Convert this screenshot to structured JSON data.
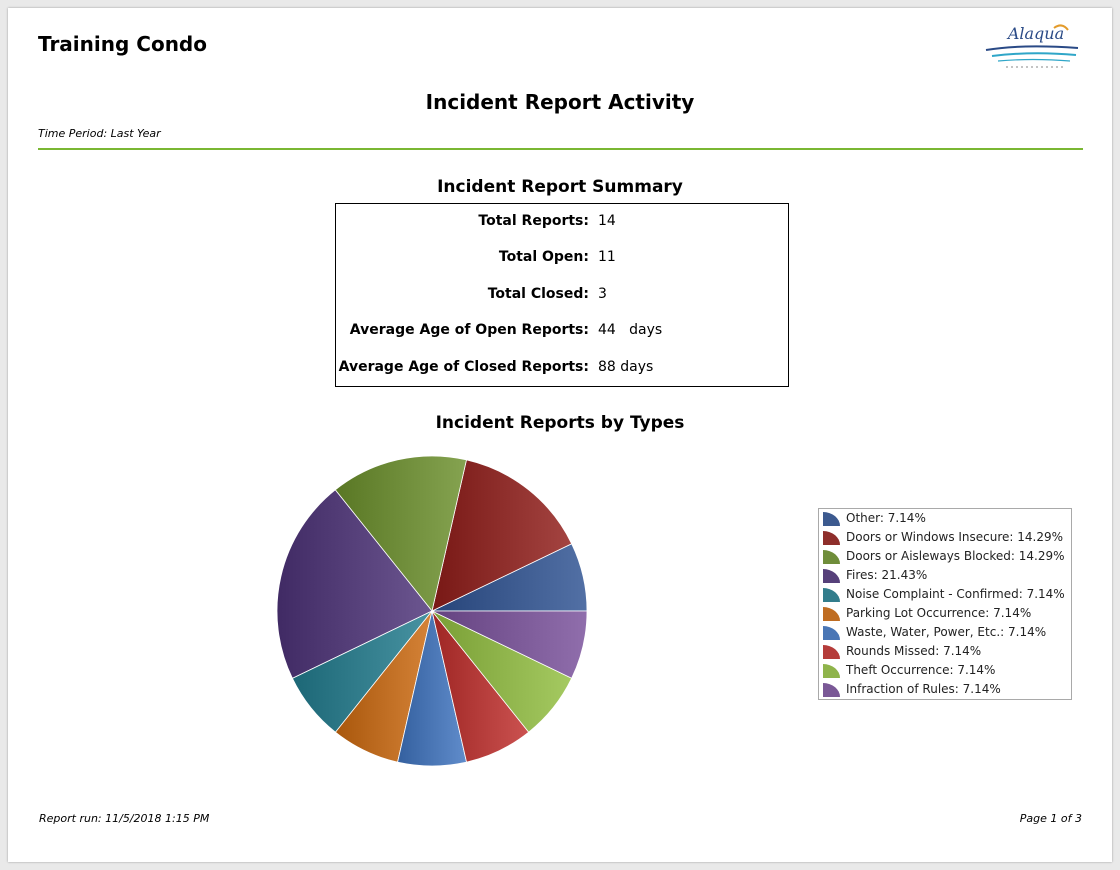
{
  "header": {
    "org_name": "Training Condo",
    "logo_text": "Alaqua"
  },
  "report": {
    "title": "Incident Report Activity",
    "time_period": "Time Period: Last Year"
  },
  "summary": {
    "title": "Incident Report Summary",
    "rows": [
      {
        "label": "Total Reports:",
        "value": "14"
      },
      {
        "label": "Total Open:",
        "value": "11"
      },
      {
        "label": "Total Closed:",
        "value": "3"
      },
      {
        "label": "Average Age of Open Reports:",
        "value": "44   days"
      },
      {
        "label": "Average Age of Closed Reports:",
        "value": "88 days"
      }
    ]
  },
  "chart_data": {
    "type": "pie",
    "title": "Incident Reports by Types",
    "legend_position": "right",
    "slices": [
      {
        "label": "Other",
        "value": 7.14,
        "legend": "Other: 7.14%",
        "color": "#3c5a8f"
      },
      {
        "label": "Doors or Windows Insecure",
        "value": 14.29,
        "legend": "Doors or Windows Insecure: 14.29%",
        "color": "#8e2e2b"
      },
      {
        "label": "Doors or Aisleways Blocked",
        "value": 14.29,
        "legend": "Doors or Aisleways Blocked: 14.29%",
        "color": "#6f8d3a"
      },
      {
        "label": "Fires",
        "value": 21.43,
        "legend": "Fires: 21.43%",
        "color": "#56407a"
      },
      {
        "label": "Noise Complaint - Confirmed",
        "value": 7.14,
        "legend": "Noise Complaint - Confirmed: 7.14%",
        "color": "#327d8c"
      },
      {
        "label": "Parking Lot Occurrence",
        "value": 7.14,
        "legend": "Parking Lot Occurrence: 7.14%",
        "color": "#bf6d22"
      },
      {
        "label": "Waste, Water, Power, Etc.",
        "value": 7.14,
        "legend": "Waste, Water, Power, Etc.: 7.14%",
        "color": "#4a76b5"
      },
      {
        "label": "Rounds Missed",
        "value": 7.14,
        "legend": "Rounds Missed: 7.14%",
        "color": "#b53c3a"
      },
      {
        "label": "Theft Occurrence",
        "value": 7.14,
        "legend": "Theft Occurrence: 7.14%",
        "color": "#8fb44b"
      },
      {
        "label": "Infraction of Rules",
        "value": 7.14,
        "legend": "Infraction of Rules: 7.14%",
        "color": "#7a5896"
      }
    ]
  },
  "footer": {
    "report_run": "Report run: 11/5/2018 1:15 PM",
    "page": "Page 1 of 3"
  }
}
